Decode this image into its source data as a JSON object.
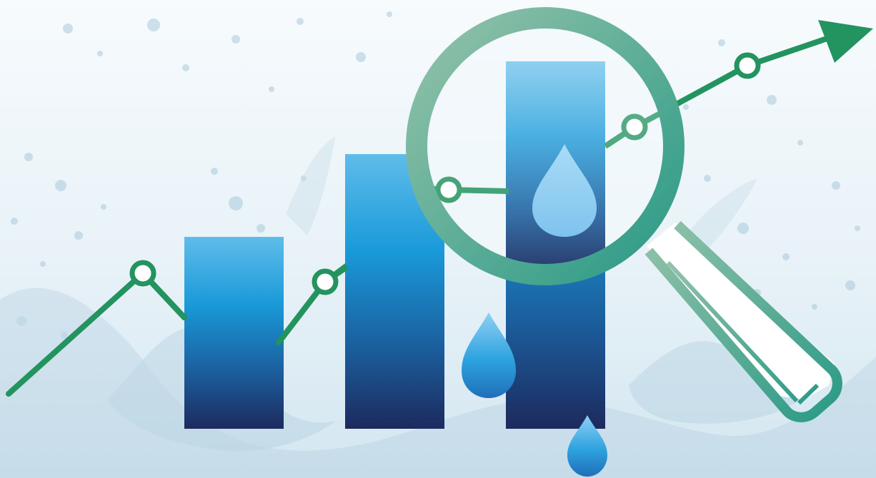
{
  "illustration": {
    "subject": "water-usage-analysis",
    "colors": {
      "background_top": "#f7fbfd",
      "background_bottom": "#d3e6f0",
      "splash": "#a9c8da",
      "trend_line": "#23935f",
      "bar_top": "#5fbcea",
      "bar_mid": "#1a8ed4",
      "bar_bottom": "#1d2a5e",
      "drop_light": "#8fd0f4",
      "drop_dark": "#1f6fb8",
      "magnifier_top": "#8fbfa7",
      "magnifier_bottom": "#2a9a86"
    },
    "bars": {
      "count": 3,
      "relative_heights": [
        0.52,
        0.75,
        1.0
      ]
    },
    "trend_points": {
      "count": 6,
      "relative_levels": [
        0.47,
        0.42,
        0.65,
        0.64,
        0.83,
        0.95
      ]
    },
    "icons": [
      "arrow-head-icon",
      "water-drop-icon",
      "magnifying-glass-icon"
    ]
  }
}
